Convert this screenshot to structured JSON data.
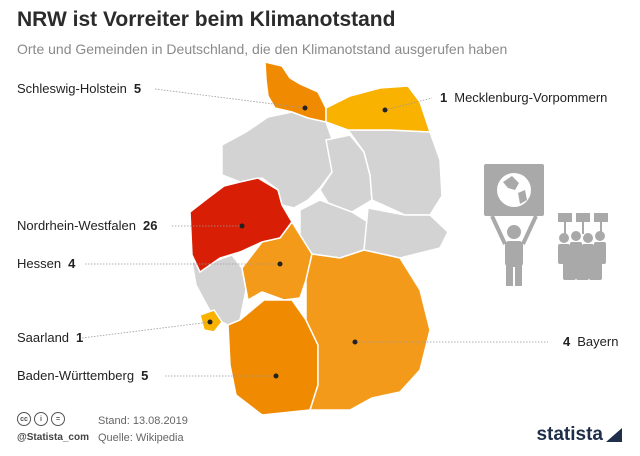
{
  "header": {
    "title": "NRW ist Vorreiter beim Klimanotstand",
    "subtitle": "Orte und Gemeinden in Deutschland, die den Klimanotstand ausgerufen haben"
  },
  "regions": [
    {
      "name": "Schleswig-Holstein",
      "value": "5",
      "color": "#f08a00"
    },
    {
      "name": "Mecklenburg-Vorpommern",
      "value": "1",
      "color": "#f9b200"
    },
    {
      "name": "Nordrhein-Westfalen",
      "value": "26",
      "color": "#d81e05"
    },
    {
      "name": "Hessen",
      "value": "4",
      "color": "#f49a1a"
    },
    {
      "name": "Saarland",
      "value": "1",
      "color": "#f9b200"
    },
    {
      "name": "Baden-Württemberg",
      "value": "5",
      "color": "#f08a00"
    },
    {
      "name": "Bayern",
      "value": "4",
      "color": "#f49a1a"
    }
  ],
  "colors": {
    "other_states": "#d3d3d3",
    "border": "#ffffff",
    "leader_line": "#999999",
    "icon": "#a9a9a9"
  },
  "icons": [
    "globe-protest-sign-icon",
    "protest-crowd-icon",
    "cc-license-icon",
    "attribution-icon",
    "no-derivatives-icon"
  ],
  "footer": {
    "handle": "@Statista_com",
    "stand": "Stand: 13.08.2019",
    "source": "Quelle: Wikipedia",
    "brand": "statista"
  }
}
